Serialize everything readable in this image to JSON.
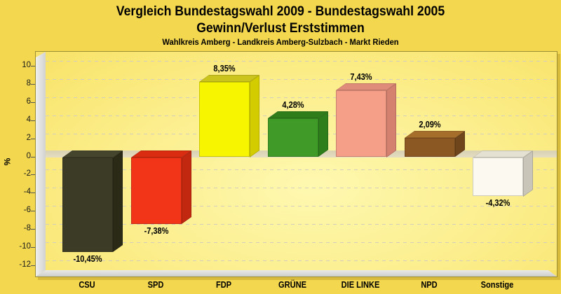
{
  "header": {
    "title_line1": "Vergleich Bundestagswahl 2009 - Bundestagswahl 2005",
    "title_line2": "Gewinn/Verlust Erststimmen",
    "subtitle": "Wahlkreis Amberg - Landkreis Amberg-Sulzbach - Markt Rieden"
  },
  "chart_data": {
    "type": "bar",
    "style": "3d",
    "title": "Vergleich Bundestagswahl 2009 - Bundestagswahl 2005 Gewinn/Verlust Erststimmen",
    "subtitle": "Wahlkreis Amberg - Landkreis Amberg-Sulzbach - Markt Rieden",
    "ylabel": "%",
    "xlabel": "",
    "ylim": [
      -12.5,
      11.5
    ],
    "yticks": [
      10,
      8,
      6,
      4,
      2,
      0,
      -2,
      -4,
      -6,
      -8,
      -10,
      -12
    ],
    "grid": "dashed horizontal",
    "legend": "none",
    "categories": [
      "CSU",
      "SPD",
      "FDP",
      "GRÜNE",
      "DIE LINKE",
      "NPD",
      "Sonstige"
    ],
    "values": [
      -10.45,
      -7.38,
      8.35,
      4.28,
      7.43,
      2.09,
      -4.32
    ],
    "bars": [
      {
        "label": "CSU",
        "value": -10.45,
        "value_label": "-10,45%",
        "front": "#3C3B25",
        "top": "#45442C",
        "side": "#2B2A16"
      },
      {
        "label": "SPD",
        "value": -7.38,
        "value_label": "-7,38%",
        "front": "#F23418",
        "top": "#D92C10",
        "side": "#C22810"
      },
      {
        "label": "FDP",
        "value": 8.35,
        "value_label": "8,35%",
        "front": "#F7F500",
        "top": "#CBC41C",
        "side": "#D2CC00"
      },
      {
        "label": "GRÜNE",
        "value": 4.28,
        "value_label": "4,28%",
        "front": "#3F9A28",
        "top": "#2E7D1A",
        "side": "#2F7E1C"
      },
      {
        "label": "DIE LINKE",
        "value": 7.43,
        "value_label": "7,43%",
        "front": "#F59E88",
        "top": "#E08C7A",
        "side": "#D48170"
      },
      {
        "label": "NPD",
        "value": 2.09,
        "value_label": "2,09%",
        "front": "#8B5823",
        "top": "#A66E2B",
        "side": "#6F451C"
      },
      {
        "label": "Sonstige",
        "value": -4.32,
        "value_label": "-4,32%",
        "front": "#FBF9F0",
        "top": "#E5E1D2",
        "side": "#C9C5B8"
      }
    ],
    "colors": {
      "page_background": "#F2D74F",
      "plot_background_center": "#FEF8B0",
      "plot_background_edge": "#F8E368",
      "panel_border": "#9C8F33",
      "wall_gray": "#D9D9D7",
      "zero_plane": "#DFD8BC",
      "gridline": "#D2CDBD",
      "text": "#000000"
    }
  }
}
